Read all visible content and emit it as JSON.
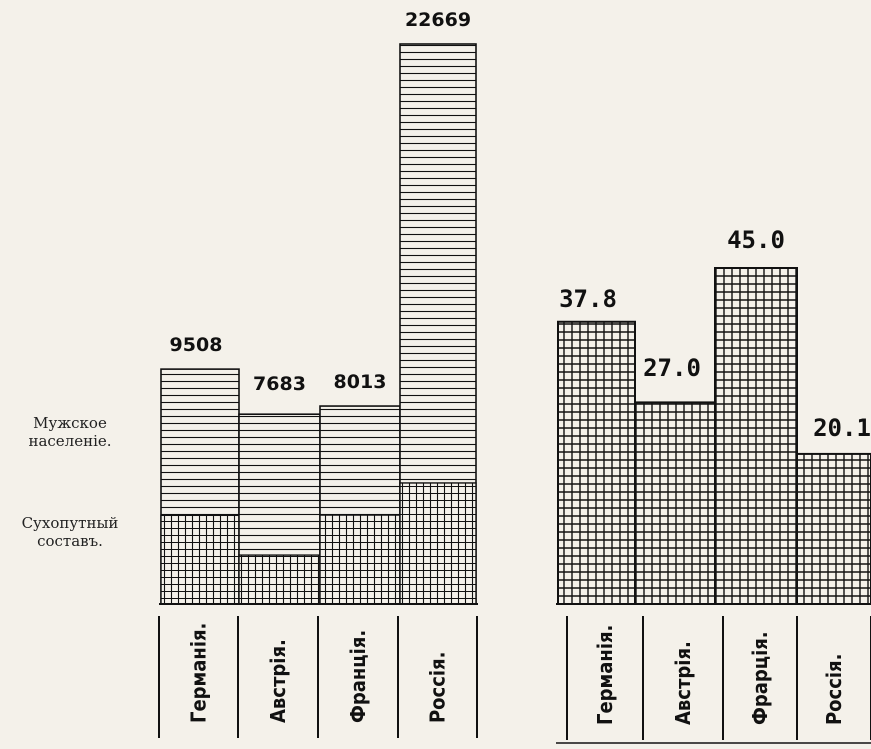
{
  "legend": {
    "male_population": "Мужское населеніе.",
    "land_forces": "Сухопутный составъ."
  },
  "colors": {
    "ink": "#111111",
    "paper": "#f4f1ea"
  },
  "chart_data": [
    {
      "type": "bar",
      "title": "",
      "categories": [
        "Германія.",
        "Австрія.",
        "Франція.",
        "Россія."
      ],
      "series": [
        {
          "name": "Мужское населеніе.",
          "values": [
            9508,
            7683,
            8013,
            22669
          ],
          "pattern": "horizontal-lines"
        },
        {
          "name": "Сухопутный составъ.",
          "values": [
            3590,
            1980,
            3600,
            4900
          ],
          "pattern": "grid"
        }
      ],
      "value_labels": [
        "9508",
        "7683",
        "8013",
        "22669"
      ],
      "stacked": "overlay",
      "grid": false
    },
    {
      "type": "bar",
      "title": "",
      "categories": [
        "Германія.",
        "Австрія.",
        "Фрарція.",
        "Россія."
      ],
      "values": [
        37.8,
        27.0,
        45.0,
        20.1
      ],
      "value_labels": [
        "37.8",
        "27.0",
        "45.0",
        "20.1"
      ],
      "pattern": "grid",
      "grid": false
    }
  ]
}
